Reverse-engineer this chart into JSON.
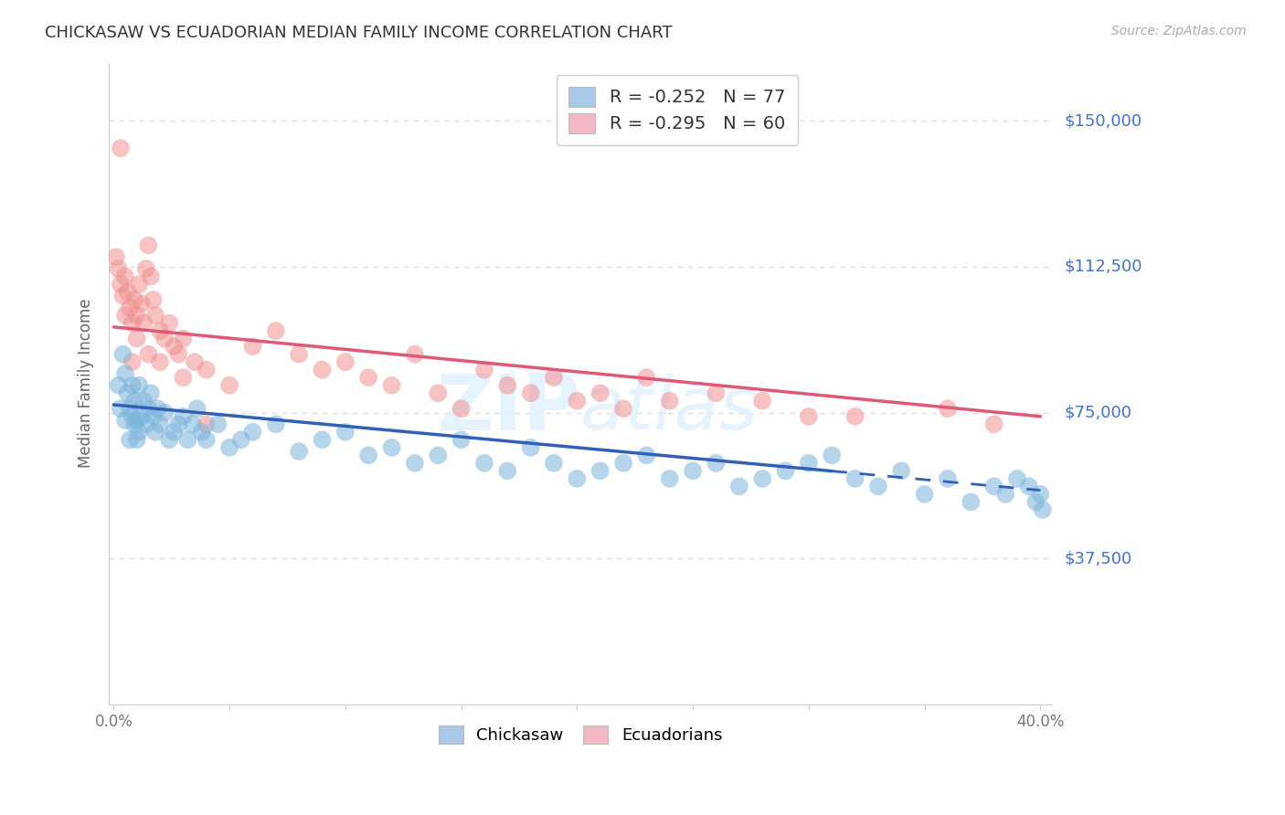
{
  "title": "CHICKASAW VS ECUADORIAN MEDIAN FAMILY INCOME CORRELATION CHART",
  "source": "Source: ZipAtlas.com",
  "ylabel": "Median Family Income",
  "y_tick_labels": [
    "$37,500",
    "$75,000",
    "$112,500",
    "$150,000"
  ],
  "y_tick_values": [
    37500,
    75000,
    112500,
    150000
  ],
  "ylim": [
    0,
    165000
  ],
  "xlim": [
    -0.002,
    0.405
  ],
  "watermark": "ZIPatlas",
  "legend_r_label1": "R = -0.252   N = 77",
  "legend_r_label2": "R = -0.295   N = 60",
  "chickasaw_legend_color": "#aac8e8",
  "ecuadorian_legend_color": "#f4b8c4",
  "chickasaw_color": "#7ab4dc",
  "ecuadorian_color": "#f09090",
  "trendline_chickasaw_color": "#3060b8",
  "trendline_ecuadorian_color": "#e05878",
  "background_color": "#ffffff",
  "grid_color": "#dddddd",
  "right_label_color": "#4472c4",
  "trendline_chick_x0": 0.0,
  "trendline_chick_y0": 77000,
  "trendline_chick_x1": 0.4,
  "trendline_chick_y1": 55000,
  "trendline_chick_solid_end": 0.31,
  "trendline_ecua_x0": 0.0,
  "trendline_ecua_y0": 97000,
  "trendline_ecua_x1": 0.4,
  "trendline_ecua_y1": 74000,
  "chickasaw_x": [
    0.002,
    0.003,
    0.004,
    0.005,
    0.005,
    0.006,
    0.007,
    0.007,
    0.008,
    0.008,
    0.009,
    0.009,
    0.01,
    0.01,
    0.011,
    0.011,
    0.012,
    0.013,
    0.014,
    0.015,
    0.016,
    0.017,
    0.018,
    0.019,
    0.02,
    0.022,
    0.024,
    0.026,
    0.028,
    0.03,
    0.032,
    0.034,
    0.036,
    0.038,
    0.04,
    0.045,
    0.05,
    0.055,
    0.06,
    0.07,
    0.08,
    0.09,
    0.1,
    0.11,
    0.12,
    0.13,
    0.14,
    0.15,
    0.16,
    0.17,
    0.18,
    0.19,
    0.2,
    0.21,
    0.22,
    0.23,
    0.24,
    0.25,
    0.26,
    0.27,
    0.28,
    0.29,
    0.3,
    0.31,
    0.32,
    0.33,
    0.34,
    0.35,
    0.36,
    0.37,
    0.38,
    0.385,
    0.39,
    0.395,
    0.398,
    0.4,
    0.401
  ],
  "chickasaw_y": [
    82000,
    76000,
    90000,
    85000,
    73000,
    80000,
    76000,
    68000,
    82000,
    74000,
    72000,
    78000,
    73000,
    68000,
    82000,
    70000,
    74000,
    78000,
    72000,
    76000,
    80000,
    74000,
    70000,
    76000,
    72000,
    75000,
    68000,
    70000,
    72000,
    74000,
    68000,
    72000,
    76000,
    70000,
    68000,
    72000,
    66000,
    68000,
    70000,
    72000,
    65000,
    68000,
    70000,
    64000,
    66000,
    62000,
    64000,
    68000,
    62000,
    60000,
    66000,
    62000,
    58000,
    60000,
    62000,
    64000,
    58000,
    60000,
    62000,
    56000,
    58000,
    60000,
    62000,
    64000,
    58000,
    56000,
    60000,
    54000,
    58000,
    52000,
    56000,
    54000,
    58000,
    56000,
    52000,
    54000,
    50000
  ],
  "ecuadorian_x": [
    0.001,
    0.002,
    0.003,
    0.004,
    0.005,
    0.006,
    0.007,
    0.008,
    0.009,
    0.01,
    0.011,
    0.012,
    0.013,
    0.014,
    0.015,
    0.016,
    0.017,
    0.018,
    0.02,
    0.022,
    0.024,
    0.026,
    0.028,
    0.03,
    0.035,
    0.04,
    0.05,
    0.06,
    0.07,
    0.08,
    0.09,
    0.1,
    0.11,
    0.12,
    0.13,
    0.14,
    0.15,
    0.16,
    0.17,
    0.18,
    0.19,
    0.2,
    0.21,
    0.22,
    0.23,
    0.24,
    0.26,
    0.28,
    0.3,
    0.32,
    0.003,
    0.005,
    0.008,
    0.01,
    0.015,
    0.02,
    0.03,
    0.04,
    0.36,
    0.38
  ],
  "ecuadorian_y": [
    115000,
    112000,
    108000,
    105000,
    110000,
    106000,
    102000,
    98000,
    104000,
    100000,
    108000,
    103000,
    98000,
    112000,
    118000,
    110000,
    104000,
    100000,
    96000,
    94000,
    98000,
    92000,
    90000,
    94000,
    88000,
    86000,
    82000,
    92000,
    96000,
    90000,
    86000,
    88000,
    84000,
    82000,
    90000,
    80000,
    76000,
    86000,
    82000,
    80000,
    84000,
    78000,
    80000,
    76000,
    84000,
    78000,
    80000,
    78000,
    74000,
    74000,
    143000,
    100000,
    88000,
    94000,
    90000,
    88000,
    84000,
    72000,
    76000,
    72000
  ]
}
